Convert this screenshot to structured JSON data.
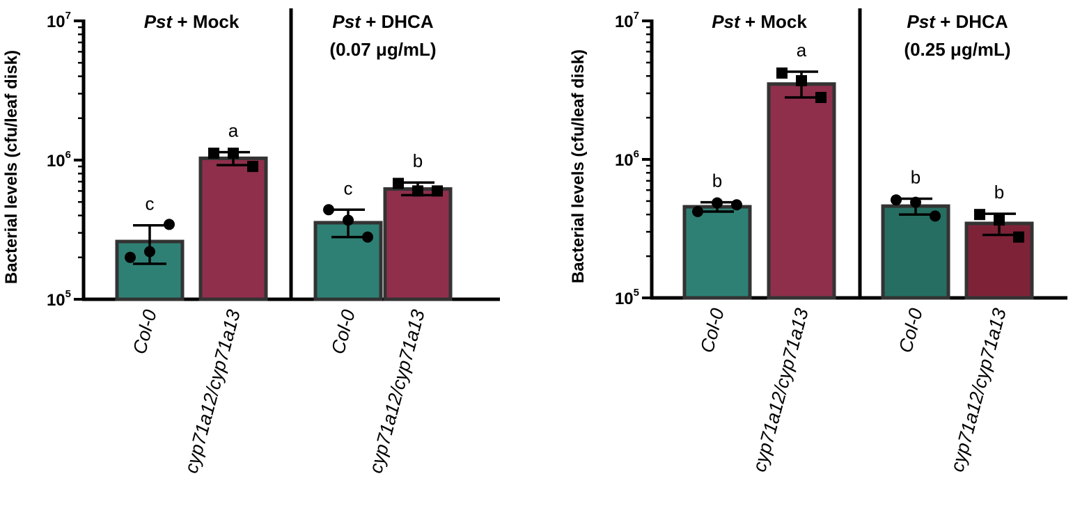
{
  "colors": {
    "col0": "#2e8074",
    "col0_dark": "#256e61",
    "mutant": "#8f2f4b",
    "mutant_dark": "#7e2238",
    "bar_border": "#333333",
    "axis": "#000000"
  },
  "chart_data": [
    {
      "type": "bar",
      "ylabel": "Bacterial levels (cfu/leaf disk)",
      "yscale": "log",
      "ylim": [
        100000,
        10000000
      ],
      "yticks": [
        {
          "base": "10",
          "exp": "5"
        },
        {
          "base": "10",
          "exp": "6"
        },
        {
          "base": "10",
          "exp": "7"
        }
      ],
      "groups": [
        {
          "title_italic": "Pst",
          "title_rest": " + Mock",
          "subtitle": ""
        },
        {
          "title_italic": "Pst",
          "title_rest": " + DHCA",
          "subtitle": "(0.07 μg/mL)"
        }
      ],
      "bars": [
        {
          "label": "Col-0",
          "group": 0,
          "color": "col0",
          "value": 260000,
          "err_low": 180000,
          "err_high": 340000,
          "letter": "c",
          "marker": "circle",
          "points": [
            200000,
            220000,
            345000
          ]
        },
        {
          "label": "cyp71a12/cyp71a13",
          "group": 0,
          "color": "mutant",
          "value": 1030000,
          "err_low": 920000,
          "err_high": 1140000,
          "letter": "a",
          "marker": "square",
          "points": [
            1120000,
            1120000,
            900000
          ]
        },
        {
          "label": "Col-0",
          "group": 1,
          "color": "col0",
          "value": 355000,
          "err_low": 280000,
          "err_high": 440000,
          "letter": "c",
          "marker": "circle",
          "points": [
            440000,
            370000,
            280000
          ]
        },
        {
          "label": "cyp71a12/cyp71a13",
          "group": 1,
          "color": "mutant",
          "value": 620000,
          "err_low": 560000,
          "err_high": 690000,
          "letter": "b",
          "marker": "square",
          "points": [
            680000,
            600000,
            600000
          ]
        }
      ]
    },
    {
      "type": "bar",
      "ylabel": "Bacterial levels (cfu/leaf disk)",
      "yscale": "log",
      "ylim": [
        100000,
        10000000
      ],
      "yticks": [
        {
          "base": "10",
          "exp": "5"
        },
        {
          "base": "10",
          "exp": "6"
        },
        {
          "base": "10",
          "exp": "7"
        }
      ],
      "groups": [
        {
          "title_italic": "Pst",
          "title_rest": " + Mock",
          "subtitle": ""
        },
        {
          "title_italic": "Pst",
          "title_rest": " + DHCA",
          "subtitle": "(0.25 μg/mL)"
        }
      ],
      "bars": [
        {
          "label": "Col-0",
          "group": 0,
          "color": "col0",
          "value": 455000,
          "err_low": 420000,
          "err_high": 490000,
          "letter": "b",
          "marker": "circle",
          "points": [
            420000,
            485000,
            470000
          ]
        },
        {
          "label": "cyp71a12/cyp71a13",
          "group": 0,
          "color": "mutant",
          "value": 3500000,
          "err_low": 2800000,
          "err_high": 4300000,
          "letter": "a",
          "marker": "square",
          "points": [
            4200000,
            3700000,
            2800000
          ]
        },
        {
          "label": "Col-0",
          "group": 1,
          "color": "col0_dark",
          "value": 460000,
          "err_low": 400000,
          "err_high": 520000,
          "letter": "b",
          "marker": "circle",
          "points": [
            510000,
            490000,
            390000
          ]
        },
        {
          "label": "cyp71a12/cyp71a13",
          "group": 1,
          "color": "mutant_dark",
          "value": 345000,
          "err_low": 285000,
          "err_high": 405000,
          "letter": "b",
          "marker": "square",
          "points": [
            400000,
            365000,
            275000
          ]
        }
      ]
    }
  ]
}
